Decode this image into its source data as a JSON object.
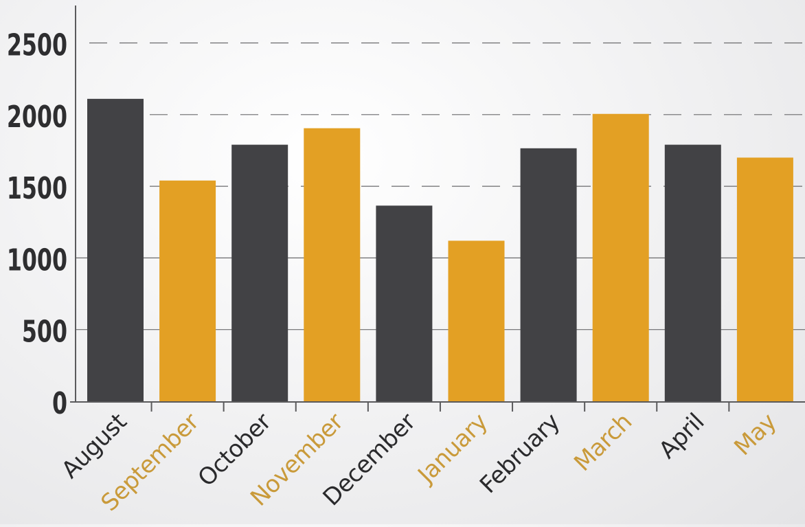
{
  "chart_data": {
    "type": "bar",
    "title": "",
    "xlabel": "",
    "ylabel": "",
    "categories": [
      "August",
      "September",
      "October",
      "November",
      "December",
      "January",
      "February",
      "March",
      "April",
      "May"
    ],
    "values": [
      2110,
      1540,
      1790,
      1905,
      1365,
      1120,
      1765,
      2005,
      1790,
      1700
    ],
    "ylim": [
      0,
      2500
    ],
    "yticks": [
      "0",
      "500",
      "1000",
      "1500",
      "2000",
      "2500"
    ],
    "grid": true,
    "colors": {
      "dark": "#424245",
      "gold": "#e3a024",
      "axis": "#5a5a5c",
      "gridline": "#6a6a6c"
    },
    "bar_color_pattern": [
      "dark",
      "gold"
    ]
  }
}
